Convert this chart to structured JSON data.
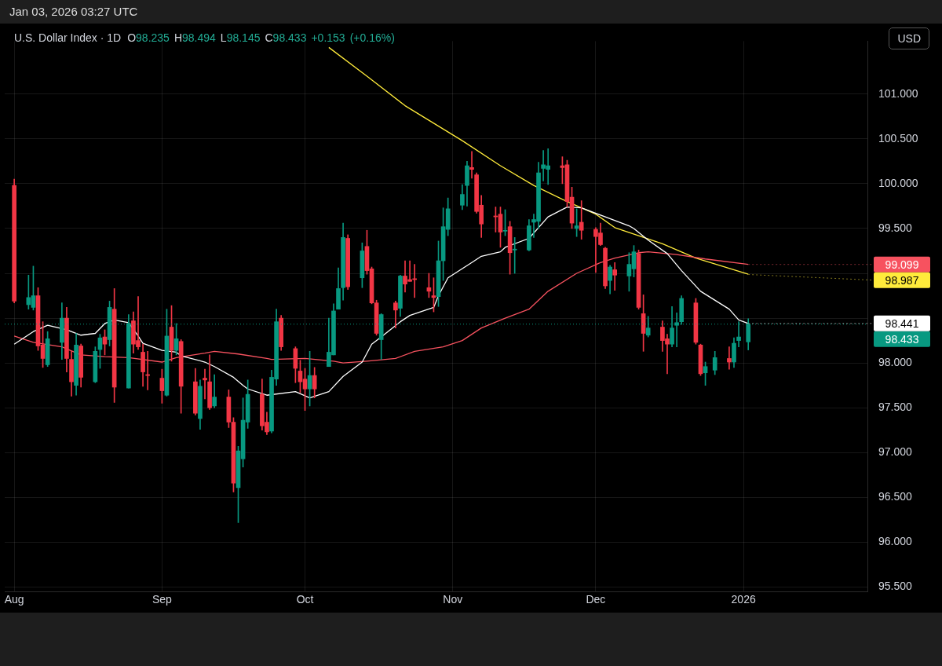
{
  "chart_data": {
    "type": "candlestick",
    "title": "U.S. Dollar Index · 1D",
    "subtitle": "O98.235 H98.494 L98.145 C98.433 +0.153 (+0.16%)",
    "ylabel": "USD",
    "annotations": [
      "Jan 03, 2026 03:27 UTC",
      {
        "text": "99.099",
        "x": "2026-01-02",
        "y": 99.099
      },
      {
        "text": "98.987",
        "x": "2026-01-02",
        "y": 98.987
      },
      {
        "text": "98.441",
        "x": "2026-01-02",
        "y": 98.441
      }
    ],
    "x": [
      "2025-08-01",
      "2025-08-04",
      "2025-08-05",
      "2025-08-06",
      "2025-08-07",
      "2025-08-08",
      "2025-08-11",
      "2025-08-12",
      "2025-08-13",
      "2025-08-14",
      "2025-08-15",
      "2025-08-18",
      "2025-08-19",
      "2025-08-20",
      "2025-08-21",
      "2025-08-22",
      "2025-08-25",
      "2025-08-26",
      "2025-08-27",
      "2025-08-28",
      "2025-08-29",
      "2025-09-01",
      "2025-09-02",
      "2025-09-03",
      "2025-09-04",
      "2025-09-05",
      "2025-09-08",
      "2025-09-09",
      "2025-09-10",
      "2025-09-11",
      "2025-09-12",
      "2025-09-15",
      "2025-09-16",
      "2025-09-17",
      "2025-09-18",
      "2025-09-19",
      "2025-09-22",
      "2025-09-23",
      "2025-09-24",
      "2025-09-25",
      "2025-09-26",
      "2025-09-29",
      "2025-09-30",
      "2025-10-01",
      "2025-10-02",
      "2025-10-03",
      "2025-10-06",
      "2025-10-07",
      "2025-10-08",
      "2025-10-09",
      "2025-10-10",
      "2025-10-13",
      "2025-10-14",
      "2025-10-15",
      "2025-10-16",
      "2025-10-17",
      "2025-10-20",
      "2025-10-21",
      "2025-10-22",
      "2025-10-23",
      "2025-10-24",
      "2025-10-27",
      "2025-10-28",
      "2025-10-29",
      "2025-10-30",
      "2025-10-31",
      "2025-11-03",
      "2025-11-04",
      "2025-11-05",
      "2025-11-06",
      "2025-11-07",
      "2025-11-10",
      "2025-11-11",
      "2025-11-12",
      "2025-11-13",
      "2025-11-14",
      "2025-11-17",
      "2025-11-18",
      "2025-11-19",
      "2025-11-20",
      "2025-11-21",
      "2025-11-24",
      "2025-11-25",
      "2025-11-26",
      "2025-11-27",
      "2025-11-28",
      "2025-12-01",
      "2025-12-02",
      "2025-12-03",
      "2025-12-04",
      "2025-12-05",
      "2025-12-08",
      "2025-12-09",
      "2025-12-10",
      "2025-12-11",
      "2025-12-12",
      "2025-12-15",
      "2025-12-16",
      "2025-12-17",
      "2025-12-18",
      "2025-12-19",
      "2025-12-22",
      "2025-12-23",
      "2025-12-24",
      "2025-12-26",
      "2025-12-29",
      "2025-12-30",
      "2025-12-31",
      "2026-01-02"
    ],
    "ohlc": [
      [
        99.98,
        100.05,
        98.67,
        98.69
      ],
      [
        98.65,
        98.98,
        98.6,
        98.73
      ],
      [
        98.62,
        99.08,
        98.59,
        98.75
      ],
      [
        98.75,
        98.84,
        98.14,
        98.19
      ],
      [
        98.2,
        98.46,
        97.95,
        98.05
      ],
      [
        97.98,
        98.35,
        97.96,
        98.27
      ],
      [
        98.23,
        98.67,
        98.04,
        98.5
      ],
      [
        98.5,
        98.62,
        97.9,
        98.05
      ],
      [
        98.04,
        98.13,
        97.63,
        97.79
      ],
      [
        97.75,
        98.33,
        97.64,
        98.2
      ],
      [
        98.19,
        98.21,
        97.73,
        97.84
      ],
      [
        97.79,
        98.18,
        97.78,
        98.13
      ],
      [
        98.15,
        98.32,
        97.94,
        98.28
      ],
      [
        98.29,
        98.37,
        98.09,
        98.21
      ],
      [
        98.26,
        98.69,
        98.19,
        98.62
      ],
      [
        98.6,
        98.83,
        97.56,
        97.73
      ],
      [
        97.72,
        98.54,
        97.72,
        98.44
      ],
      [
        98.47,
        98.57,
        98.11,
        98.21
      ],
      [
        98.25,
        98.74,
        98.15,
        98.18
      ],
      [
        98.12,
        98.21,
        97.74,
        97.9
      ],
      [
        97.87,
        98.13,
        97.7,
        97.86
      ],
      [
        97.83,
        97.93,
        97.55,
        97.69
      ],
      [
        97.64,
        98.6,
        97.63,
        98.3
      ],
      [
        98.4,
        98.64,
        98.02,
        98.14
      ],
      [
        98.14,
        98.44,
        98.09,
        98.27
      ],
      [
        98.24,
        98.26,
        97.44,
        97.74
      ],
      [
        97.79,
        97.94,
        97.42,
        97.44
      ],
      [
        97.38,
        97.81,
        97.26,
        97.74
      ],
      [
        97.83,
        97.93,
        97.6,
        97.81
      ],
      [
        97.79,
        98.09,
        97.48,
        97.5
      ],
      [
        97.52,
        97.87,
        97.5,
        97.62
      ],
      [
        97.62,
        97.7,
        97.28,
        97.34
      ],
      [
        97.34,
        97.39,
        96.56,
        96.66
      ],
      [
        96.61,
        97.07,
        96.22,
        97.02
      ],
      [
        96.93,
        97.61,
        96.84,
        97.36
      ],
      [
        97.34,
        97.81,
        97.27,
        97.65
      ],
      [
        97.65,
        97.82,
        97.25,
        97.3
      ],
      [
        97.34,
        97.45,
        97.2,
        97.23
      ],
      [
        97.24,
        97.92,
        97.22,
        97.84
      ],
      [
        97.82,
        98.6,
        97.75,
        98.46
      ],
      [
        98.5,
        98.53,
        98.14,
        98.18
      ],
      [
        98.16,
        98.18,
        97.78,
        97.94
      ],
      [
        97.91,
        98.03,
        97.67,
        97.79
      ],
      [
        97.82,
        97.94,
        97.47,
        97.71
      ],
      [
        97.71,
        98.13,
        97.52,
        97.86
      ],
      [
        97.86,
        97.95,
        97.61,
        97.71
      ],
      [
        97.96,
        98.5,
        97.96,
        98.12
      ],
      [
        98.09,
        98.66,
        98.09,
        98.58
      ],
      [
        98.6,
        99.06,
        98.6,
        98.83
      ],
      [
        98.84,
        99.56,
        98.7,
        99.4
      ],
      [
        99.39,
        99.43,
        98.82,
        98.85
      ],
      [
        98.95,
        99.34,
        98.84,
        99.25
      ],
      [
        99.3,
        99.48,
        98.99,
        99.03
      ],
      [
        99.05,
        99.07,
        98.66,
        98.67
      ],
      [
        98.67,
        98.7,
        98.31,
        98.33
      ],
      [
        98.26,
        98.55,
        98.04,
        98.54
      ],
      [
        98.67,
        98.69,
        98.39,
        98.59
      ],
      [
        98.61,
        98.98,
        98.52,
        98.97
      ],
      [
        98.97,
        99.14,
        98.79,
        98.88
      ],
      [
        98.93,
        99.14,
        98.91,
        98.91
      ],
      [
        98.94,
        99.1,
        98.73,
        98.93
      ],
      [
        98.84,
        99.0,
        98.73,
        98.8
      ],
      [
        98.75,
        98.95,
        98.57,
        98.73
      ],
      [
        98.74,
        99.36,
        98.63,
        99.14
      ],
      [
        99.14,
        99.73,
        98.92,
        99.52
      ],
      [
        99.49,
        99.84,
        99.42,
        99.72
      ],
      [
        99.76,
        99.99,
        99.71,
        99.88
      ],
      [
        99.98,
        100.25,
        99.75,
        100.2
      ],
      [
        100.18,
        100.36,
        100.06,
        100.16
      ],
      [
        100.1,
        100.12,
        99.67,
        99.69
      ],
      [
        99.76,
        99.87,
        99.4,
        99.55
      ],
      [
        99.64,
        99.74,
        99.46,
        99.63
      ],
      [
        99.66,
        99.74,
        99.29,
        99.46
      ],
      [
        99.47,
        99.71,
        99.42,
        99.48
      ],
      [
        99.52,
        99.58,
        98.99,
        99.23
      ],
      [
        99.26,
        99.4,
        99.0,
        99.27
      ],
      [
        99.26,
        99.6,
        99.25,
        99.53
      ],
      [
        99.57,
        99.66,
        99.4,
        99.6
      ],
      [
        99.58,
        100.24,
        99.5,
        100.12
      ],
      [
        100.17,
        100.37,
        100.03,
        100.21
      ],
      [
        100.16,
        100.39,
        99.99,
        100.2
      ],
      [
        100.2,
        100.3,
        100.0,
        100.18
      ],
      [
        100.21,
        100.26,
        99.74,
        99.8
      ],
      [
        99.85,
        99.96,
        99.5,
        99.56
      ],
      [
        99.5,
        99.72,
        99.41,
        99.53
      ],
      [
        99.57,
        99.81,
        99.38,
        99.48
      ],
      [
        99.49,
        99.51,
        99.01,
        99.41
      ],
      [
        99.45,
        99.56,
        99.31,
        99.32
      ],
      [
        99.28,
        99.29,
        98.83,
        98.86
      ],
      [
        98.92,
        99.09,
        98.77,
        99.07
      ],
      [
        99.04,
        99.12,
        98.81,
        98.98
      ],
      [
        98.97,
        99.23,
        98.8,
        99.1
      ],
      [
        99.05,
        99.31,
        98.96,
        99.24
      ],
      [
        99.22,
        99.26,
        98.6,
        98.62
      ],
      [
        98.55,
        98.76,
        98.13,
        98.33
      ],
      [
        98.31,
        98.52,
        98.29,
        98.39
      ],
      [
        98.4,
        98.47,
        98.13,
        98.25
      ],
      [
        98.27,
        98.32,
        97.88,
        98.21
      ],
      [
        98.21,
        98.63,
        98.18,
        98.39
      ],
      [
        98.42,
        98.56,
        98.18,
        98.45
      ],
      [
        98.46,
        98.75,
        98.43,
        98.72
      ],
      [
        98.67,
        98.72,
        98.21,
        98.23
      ],
      [
        98.2,
        98.21,
        97.86,
        97.88
      ],
      [
        97.89,
        98.01,
        97.75,
        97.96
      ],
      [
        97.92,
        98.13,
        97.87,
        98.06
      ],
      [
        98.05,
        98.18,
        97.93,
        98.01
      ],
      [
        98.01,
        98.28,
        97.95,
        98.22
      ],
      [
        98.25,
        98.46,
        98.18,
        98.29
      ],
      [
        98.235,
        98.494,
        98.145,
        98.433
      ]
    ],
    "colors": [
      "#f23645",
      "#089981",
      "#089981",
      "#f23645",
      "#f23645",
      "#089981",
      "#089981",
      "#f23645",
      "#f23645",
      "#089981",
      "#f23645",
      "#089981",
      "#089981",
      "#f23645",
      "#089981",
      "#f23645",
      "#089981",
      "#f23645",
      "#f23645",
      "#f23645",
      "#f23645",
      "#f23645",
      "#089981",
      "#f23645",
      "#089981",
      "#f23645",
      "#f23645",
      "#089981",
      "#f23645",
      "#f23645",
      "#089981",
      "#f23645",
      "#f23645",
      "#089981",
      "#089981",
      "#089981",
      "#f23645",
      "#f23645",
      "#089981",
      "#089981",
      "#f23645",
      "#f23645",
      "#f23645",
      "#f23645",
      "#089981",
      "#f23645",
      "#089981",
      "#089981",
      "#089981",
      "#089981",
      "#f23645",
      "#089981",
      "#f23645",
      "#f23645",
      "#f23645",
      "#089981",
      "#f23645",
      "#089981",
      "#f23645",
      "#f23645",
      "#f23645",
      "#f23645",
      "#f23645",
      "#089981",
      "#089981",
      "#089981",
      "#089981",
      "#089981",
      "#f23645",
      "#f23645",
      "#f23645",
      "#f23645",
      "#f23645",
      "#089981",
      "#f23645",
      "#089981",
      "#089981",
      "#089981",
      "#089981",
      "#089981",
      "#089981",
      "#f23645",
      "#f23645",
      "#f23645",
      "#089981",
      "#f23645",
      "#f23645",
      "#f23645",
      "#f23645",
      "#089981",
      "#f23645",
      "#089981",
      "#089981",
      "#f23645",
      "#f23645",
      "#089981",
      "#f23645",
      "#f23645",
      "#089981",
      "#089981",
      "#089981",
      "#f23645",
      "#f23645",
      "#089981",
      "#089981",
      "#f23645",
      "#089981",
      "#089981",
      "#089981"
    ],
    "series": [
      {
        "type": "line",
        "color": "#ffffff",
        "x": [
          "2025-08-01",
          "2025-08-05",
          "2025-08-08",
          "2025-08-12",
          "2025-08-15",
          "2025-08-18",
          "2025-08-20",
          "2025-08-22",
          "2025-08-25",
          "2025-08-27",
          "2025-08-28",
          "2025-09-01",
          "2025-09-04",
          "2025-09-05",
          "2025-09-10",
          "2025-09-12",
          "2025-09-16",
          "2025-09-18",
          "2025-09-19",
          "2025-09-23",
          "2025-09-29",
          "2025-10-02",
          "2025-10-06",
          "2025-10-09",
          "2025-10-13",
          "2025-10-15",
          "2025-10-17",
          "2025-10-21",
          "2025-10-23",
          "2025-10-28",
          "2025-10-29",
          "2025-10-31",
          "2025-11-05",
          "2025-11-07",
          "2025-11-11",
          "2025-11-12",
          "2025-11-17",
          "2025-11-21",
          "2025-11-25",
          "2025-11-28",
          "2025-12-03",
          "2025-12-08",
          "2025-12-09",
          "2025-12-12",
          "2025-12-16",
          "2025-12-19",
          "2025-12-23",
          "2025-12-29",
          "2025-12-31",
          "2026-01-02"
        ],
        "values": [
          98.21,
          98.35,
          98.42,
          98.37,
          98.31,
          98.33,
          98.44,
          98.48,
          98.45,
          98.3,
          98.22,
          98.14,
          98.12,
          98.08,
          98.01,
          97.96,
          97.84,
          97.75,
          97.71,
          97.64,
          97.68,
          97.61,
          97.68,
          97.85,
          98.01,
          98.21,
          98.29,
          98.46,
          98.53,
          98.62,
          98.75,
          98.95,
          99.12,
          99.19,
          99.24,
          99.29,
          99.39,
          99.63,
          99.74,
          99.73,
          99.63,
          99.53,
          99.5,
          99.37,
          99.22,
          99.03,
          98.8,
          98.6,
          98.48,
          98.44
        ]
      },
      {
        "type": "line",
        "color": "#f7525f",
        "x": [
          "2025-08-01",
          "2025-08-05",
          "2025-08-11",
          "2025-08-15",
          "2025-08-20",
          "2025-08-25",
          "2025-09-01",
          "2025-09-04",
          "2025-09-10",
          "2025-09-12",
          "2025-09-17",
          "2025-09-23",
          "2025-09-24",
          "2025-10-01",
          "2025-10-07",
          "2025-10-09",
          "2025-10-14",
          "2025-10-20",
          "2025-10-24",
          "2025-10-30",
          "2025-11-03",
          "2025-11-07",
          "2025-11-12",
          "2025-11-17",
          "2025-11-21",
          "2025-11-27",
          "2025-12-02",
          "2025-12-05",
          "2025-12-10",
          "2025-12-12",
          "2025-12-18",
          "2025-12-24",
          "2026-01-02"
        ],
        "values": [
          98.3,
          98.23,
          98.18,
          98.09,
          98.07,
          98.06,
          98.01,
          98.06,
          98.11,
          98.13,
          98.1,
          98.05,
          98.04,
          98.05,
          98.02,
          98.0,
          98.02,
          98.05,
          98.13,
          98.18,
          98.25,
          98.39,
          98.5,
          98.6,
          98.8,
          99.0,
          99.12,
          99.17,
          99.23,
          99.24,
          99.21,
          99.16,
          99.1
        ]
      },
      {
        "type": "line",
        "color": "#ffeb3b",
        "x": [
          "2025-10-06",
          "2025-10-14",
          "2025-10-22",
          "2025-11-03",
          "2025-11-11",
          "2025-11-18",
          "2025-11-25",
          "2025-12-01",
          "2025-12-05",
          "2025-12-15",
          "2025-12-22",
          "2026-01-02"
        ],
        "values": [
          101.52,
          101.2,
          100.87,
          100.48,
          100.2,
          99.98,
          99.8,
          99.66,
          99.51,
          99.33,
          99.17,
          98.99
        ]
      }
    ],
    "xlim": [
      "2025-07-30",
      "2026-01-27"
    ],
    "xticks": [
      {
        "value": "2025-08-01",
        "label": "Aug"
      },
      {
        "value": "2025-09-01",
        "label": "Sep"
      },
      {
        "value": "2025-10-01",
        "label": "Oct"
      },
      {
        "value": "2025-11-01",
        "label": "Nov"
      },
      {
        "value": "2025-12-01",
        "label": "Dec"
      },
      {
        "value": "2026-01-01",
        "label": "2026"
      }
    ],
    "ylim": [
      95.45,
      101.59
    ],
    "yticks": [
      {
        "value": 95.5,
        "label": "95.500"
      },
      {
        "value": 96,
        "label": "96.000"
      },
      {
        "value": 96.5,
        "label": "96.500"
      },
      {
        "value": 97,
        "label": "97.000"
      },
      {
        "value": 97.5,
        "label": "97.500"
      },
      {
        "value": 98,
        "label": "98.000"
      },
      {
        "value": 98.5,
        "label": null
      },
      {
        "value": 99,
        "label": null
      },
      {
        "value": 99.5,
        "label": "99.500"
      },
      {
        "value": 100,
        "label": "100.000"
      },
      {
        "value": 100.5,
        "label": "100.500"
      },
      {
        "value": 101,
        "label": "101.000"
      }
    ],
    "grid": true,
    "marker": "none",
    "line_style": "solid",
    "ref_lines": [
      {
        "axis": "y",
        "value": 98.433,
        "label": "98.433",
        "color": "#089981",
        "line_style": "dotted"
      }
    ]
  }
}
